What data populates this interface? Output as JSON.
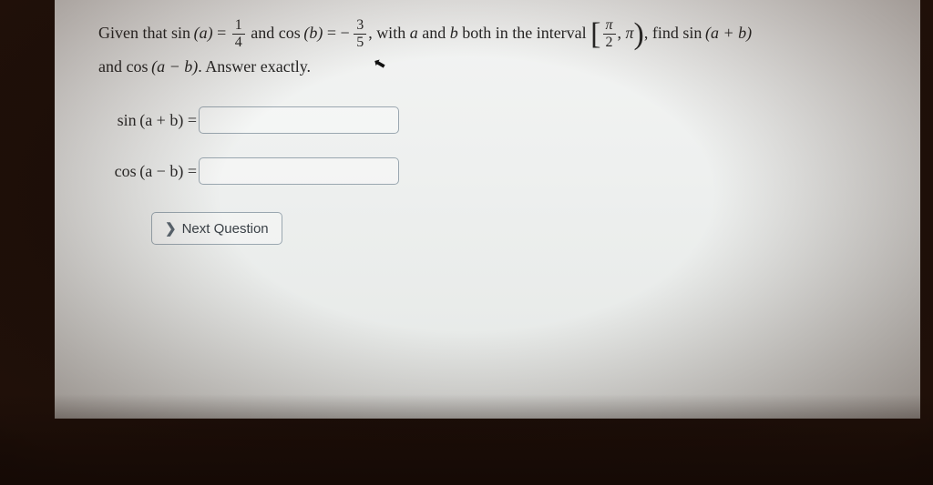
{
  "question": {
    "lead": "Given that ",
    "sinA_func": "sin",
    "sinA_arg": "(a)",
    "eq": " = ",
    "sinA_num": "1",
    "sinA_den": "4",
    "and1": " and ",
    "cosB_func": "cos",
    "cosB_arg": "(b)",
    "neg": " − ",
    "cosB_num": "3",
    "cosB_den": "5",
    "mid": ", with ",
    "a": "a",
    "and2": " and ",
    "b": "b",
    "interval_lead": " both in the interval ",
    "int_num": "π",
    "int_den": "2",
    "comma": ", ",
    "pi": "π",
    "trail": ", find ",
    "find1_func": "sin",
    "find1_arg": "(a + b)",
    "line2_and": "and ",
    "find2_func": "cos",
    "find2_arg": "(a − b)",
    "line2_answer": ". Answer exactly."
  },
  "answers": {
    "row1_label_func": "sin",
    "row1_label_arg": "(a + b)",
    "row1_value": "",
    "row2_label_func": "cos",
    "row2_label_arg": "(a − b)",
    "row2_value": ""
  },
  "button": {
    "next_label": "Next Question"
  },
  "style": {
    "page_bg": "#eef0ef",
    "text_color": "#262626",
    "input_border": "#9aa7b0",
    "button_text": "#3a4147"
  }
}
